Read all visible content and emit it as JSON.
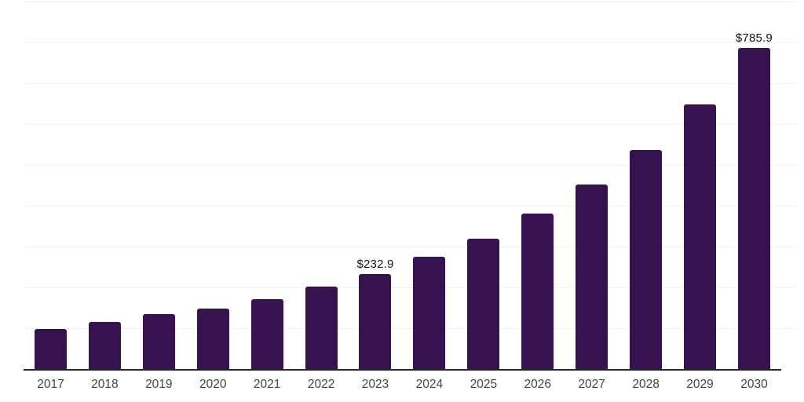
{
  "chart_data": {
    "type": "bar",
    "title": "",
    "xlabel": "",
    "ylabel": "",
    "categories": [
      "2017",
      "2018",
      "2019",
      "2020",
      "2021",
      "2022",
      "2023",
      "2024",
      "2025",
      "2026",
      "2027",
      "2028",
      "2029",
      "2030"
    ],
    "values": [
      99,
      116,
      135,
      149,
      172,
      201,
      232.9,
      275,
      320,
      380,
      451,
      537,
      649,
      785.9
    ],
    "data_labels": [
      null,
      null,
      null,
      null,
      null,
      null,
      "$232.9",
      null,
      null,
      null,
      null,
      null,
      null,
      "$785.9"
    ],
    "ylim": [
      0,
      900
    ],
    "grid_step": 100,
    "grid": "horizontal-only",
    "legend": "none",
    "colors": {
      "bar": "#361250",
      "axis_line": "#262626",
      "gridline": "#f0f0f2",
      "data_label": "#111111",
      "tick_label": "#454545",
      "background": "#ffffff"
    }
  }
}
